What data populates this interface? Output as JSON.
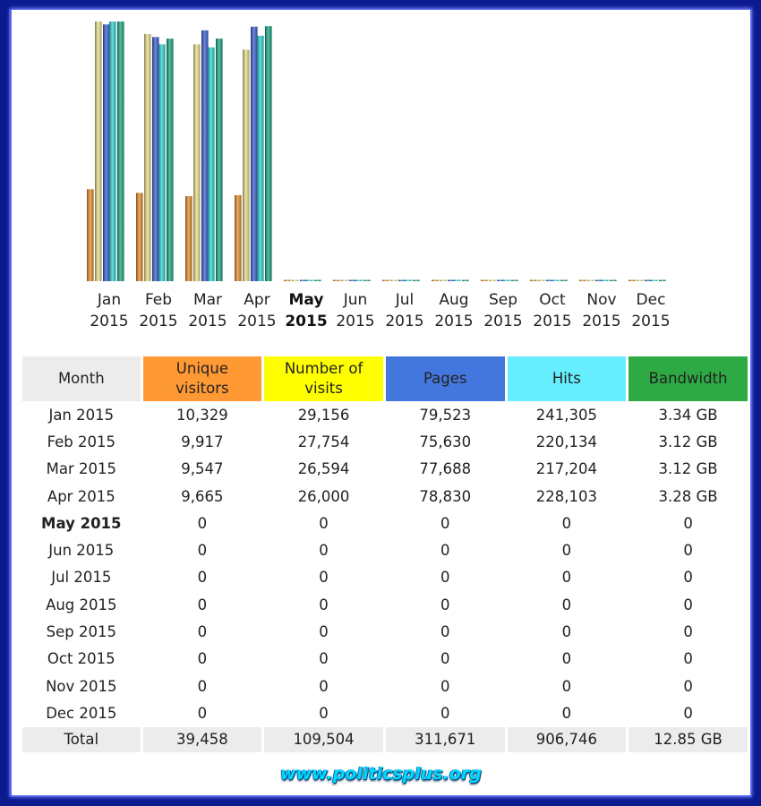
{
  "chart_data": {
    "type": "bar",
    "categories": [
      "Jan 2015",
      "Feb 2015",
      "Mar 2015",
      "Apr 2015",
      "May 2015",
      "Jun 2015",
      "Jul 2015",
      "Aug 2015",
      "Sep 2015",
      "Oct 2015",
      "Nov 2015",
      "Dec 2015"
    ],
    "category_labels": [
      [
        "Jan",
        "2015"
      ],
      [
        "Feb",
        "2015"
      ],
      [
        "Mar",
        "2015"
      ],
      [
        "Apr",
        "2015"
      ],
      [
        "May",
        "2015"
      ],
      [
        "Jun",
        "2015"
      ],
      [
        "Jul",
        "2015"
      ],
      [
        "Aug",
        "2015"
      ],
      [
        "Sep",
        "2015"
      ],
      [
        "Oct",
        "2015"
      ],
      [
        "Nov",
        "2015"
      ],
      [
        "Dec",
        "2015"
      ]
    ],
    "highlight_category": "May 2015",
    "series": [
      {
        "name": "Unique visitors",
        "color": "#e8902e",
        "values": [
          10329,
          9917,
          9547,
          9665,
          0,
          0,
          0,
          0,
          0,
          0,
          0,
          0
        ]
      },
      {
        "name": "Number of visits",
        "color": "#ece28c",
        "values": [
          29156,
          27754,
          26594,
          26000,
          0,
          0,
          0,
          0,
          0,
          0,
          0,
          0
        ]
      },
      {
        "name": "Pages",
        "color": "#3f62d6",
        "values": [
          79523,
          75630,
          77688,
          78830,
          0,
          0,
          0,
          0,
          0,
          0,
          0,
          0
        ]
      },
      {
        "name": "Hits",
        "color": "#2fd8d8",
        "values": [
          241305,
          220134,
          217204,
          228103,
          0,
          0,
          0,
          0,
          0,
          0,
          0,
          0
        ]
      },
      {
        "name": "Bandwidth",
        "color": "#1fa884",
        "unit": "GB",
        "values": [
          3.34,
          3.12,
          3.12,
          3.28,
          0,
          0,
          0,
          0,
          0,
          0,
          0,
          0
        ]
      }
    ]
  },
  "table": {
    "headers": {
      "month": "Month",
      "unique": [
        "Unique",
        "visitors"
      ],
      "visits": [
        "Number of",
        "visits"
      ],
      "pages": "Pages",
      "hits": "Hits",
      "bandwidth": "Bandwidth"
    },
    "rows": [
      {
        "month": "Jan 2015",
        "unique": "10,329",
        "visits": "29,156",
        "pages": "79,523",
        "hits": "241,305",
        "bandwidth": "3.34 GB"
      },
      {
        "month": "Feb 2015",
        "unique": "9,917",
        "visits": "27,754",
        "pages": "75,630",
        "hits": "220,134",
        "bandwidth": "3.12 GB"
      },
      {
        "month": "Mar 2015",
        "unique": "9,547",
        "visits": "26,594",
        "pages": "77,688",
        "hits": "217,204",
        "bandwidth": "3.12 GB"
      },
      {
        "month": "Apr 2015",
        "unique": "9,665",
        "visits": "26,000",
        "pages": "78,830",
        "hits": "228,103",
        "bandwidth": "3.28 GB"
      },
      {
        "month": "May 2015",
        "unique": "0",
        "visits": "0",
        "pages": "0",
        "hits": "0",
        "bandwidth": "0",
        "bold": true
      },
      {
        "month": "Jun 2015",
        "unique": "0",
        "visits": "0",
        "pages": "0",
        "hits": "0",
        "bandwidth": "0"
      },
      {
        "month": "Jul 2015",
        "unique": "0",
        "visits": "0",
        "pages": "0",
        "hits": "0",
        "bandwidth": "0"
      },
      {
        "month": "Aug 2015",
        "unique": "0",
        "visits": "0",
        "pages": "0",
        "hits": "0",
        "bandwidth": "0"
      },
      {
        "month": "Sep 2015",
        "unique": "0",
        "visits": "0",
        "pages": "0",
        "hits": "0",
        "bandwidth": "0"
      },
      {
        "month": "Oct 2015",
        "unique": "0",
        "visits": "0",
        "pages": "0",
        "hits": "0",
        "bandwidth": "0"
      },
      {
        "month": "Nov 2015",
        "unique": "0",
        "visits": "0",
        "pages": "0",
        "hits": "0",
        "bandwidth": "0"
      },
      {
        "month": "Dec 2015",
        "unique": "0",
        "visits": "0",
        "pages": "0",
        "hits": "0",
        "bandwidth": "0"
      }
    ],
    "total": {
      "month": "Total",
      "unique": "39,458",
      "visits": "109,504",
      "pages": "311,671",
      "hits": "906,746",
      "bandwidth": "12.85 GB"
    }
  },
  "watermark": "www.politicsplus.org"
}
